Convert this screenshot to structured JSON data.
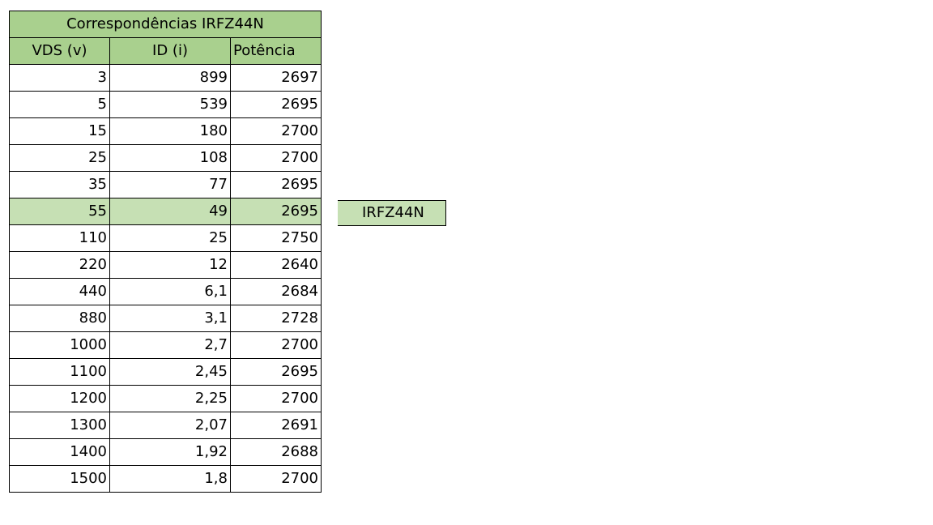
{
  "table": {
    "title": "Correspondências IRFZ44N",
    "headers": [
      "VDS (v)",
      "ID (i)",
      "Potência"
    ],
    "rows": [
      [
        "3",
        "899",
        "2697"
      ],
      [
        "5",
        "539",
        "2695"
      ],
      [
        "15",
        "180",
        "2700"
      ],
      [
        "25",
        "108",
        "2700"
      ],
      [
        "35",
        "77",
        "2695"
      ],
      [
        "55",
        "49",
        "2695"
      ],
      [
        "110",
        "25",
        "2750"
      ],
      [
        "220",
        "12",
        "2640"
      ],
      [
        "440",
        "6,1",
        "2684"
      ],
      [
        "880",
        "3,1",
        "2728"
      ],
      [
        "1000",
        "2,7",
        "2700"
      ],
      [
        "1100",
        "2,45",
        "2695"
      ],
      [
        "1200",
        "2,25",
        "2700"
      ],
      [
        "1300",
        "2,07",
        "2691"
      ],
      [
        "1400",
        "1,92",
        "2688"
      ],
      [
        "1500",
        "1,8",
        "2700"
      ]
    ],
    "highlighted_row_index": 5
  },
  "side_label": "IRFZ44N",
  "colors": {
    "header_fill": "#a9d08e",
    "highlight_fill": "#c6e0b4",
    "border": "#000000"
  }
}
